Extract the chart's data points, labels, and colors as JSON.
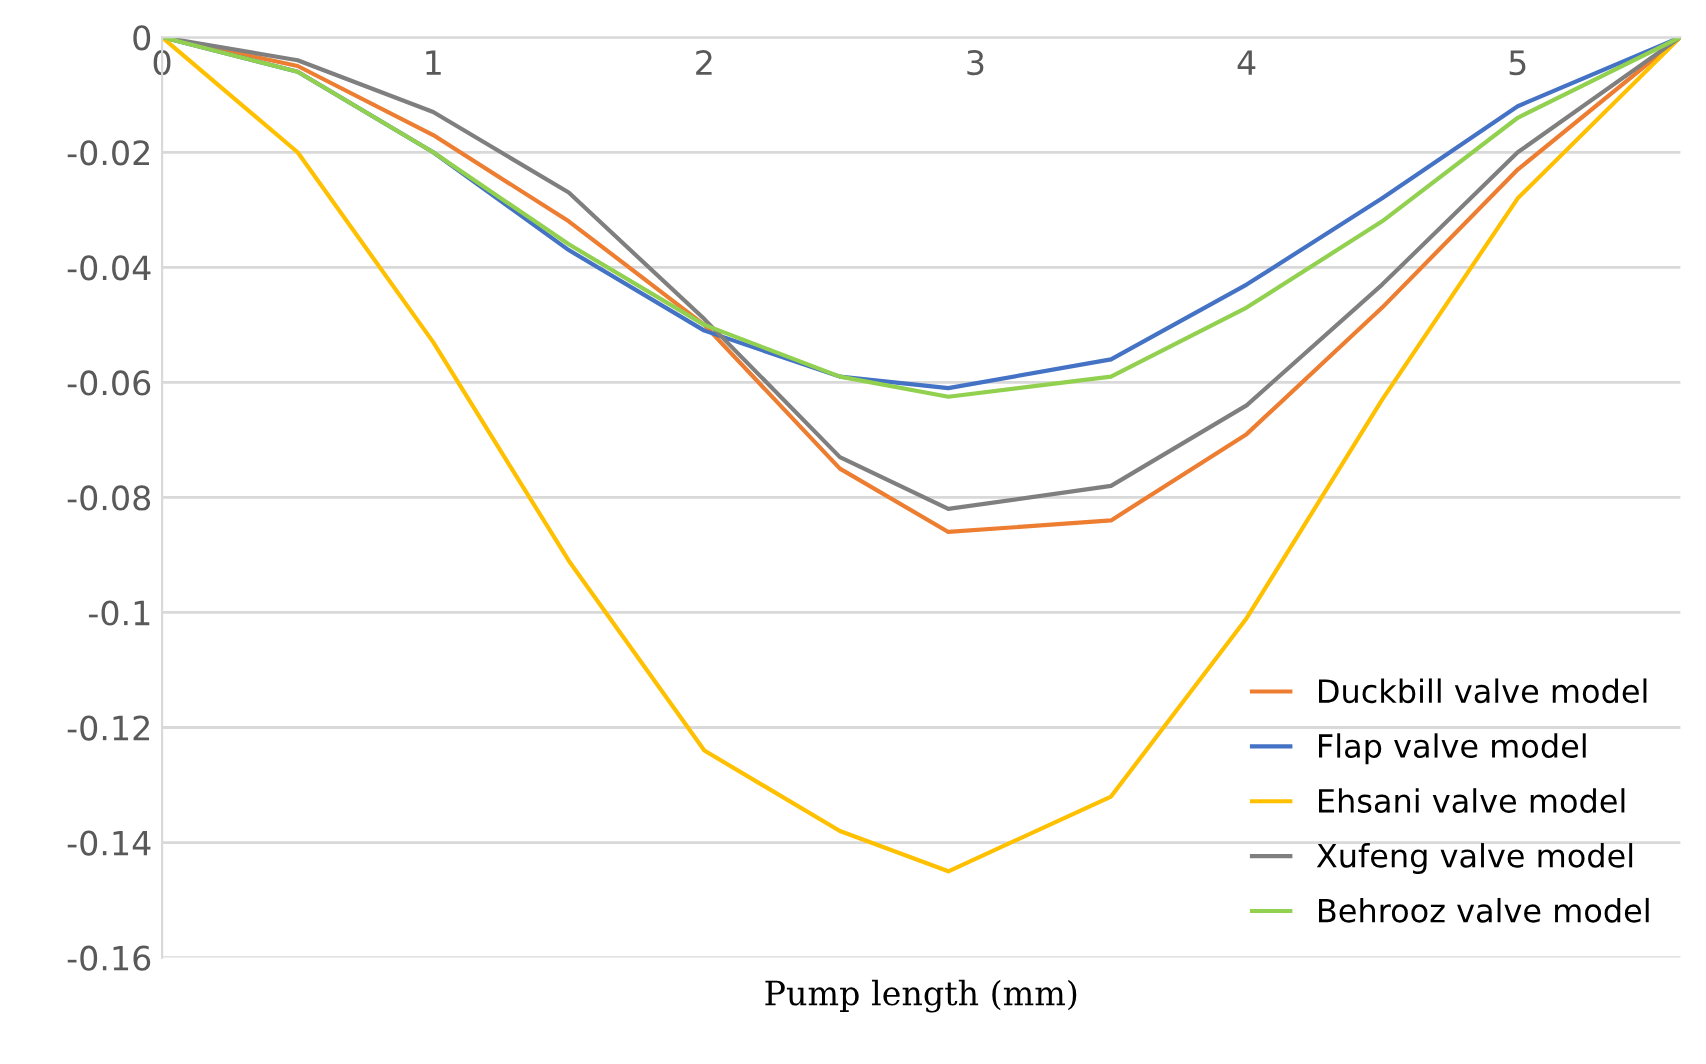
{
  "chart_data": {
    "type": "line",
    "xlabel": "Pump length (mm)",
    "x": [
      0,
      0.5,
      1,
      1.5,
      2,
      2.5,
      2.9,
      3.5,
      4,
      4.5,
      5,
      5.6
    ],
    "series": [
      {
        "name": "Duckbill valve model",
        "color": "#ed7d31",
        "values": [
          0,
          -0.005,
          -0.017,
          -0.032,
          -0.05,
          -0.075,
          -0.086,
          -0.084,
          -0.069,
          -0.047,
          -0.023,
          0
        ]
      },
      {
        "name": "Flap valve model",
        "color": "#4472c4",
        "values": [
          0,
          -0.006,
          -0.02,
          -0.037,
          -0.051,
          -0.059,
          -0.061,
          -0.056,
          -0.043,
          -0.028,
          -0.012,
          0
        ]
      },
      {
        "name": "Ehsani valve model",
        "color": "#ffc000",
        "values": [
          0,
          -0.02,
          -0.053,
          -0.091,
          -0.124,
          -0.138,
          -0.145,
          -0.132,
          -0.101,
          -0.063,
          -0.028,
          0
        ]
      },
      {
        "name": "Xufeng valve model",
        "color": "#7f7f7f",
        "values": [
          0,
          -0.004,
          -0.013,
          -0.027,
          -0.049,
          -0.073,
          -0.082,
          -0.078,
          -0.064,
          -0.043,
          -0.02,
          0
        ]
      },
      {
        "name": "Behrooz valve model",
        "color": "#92d050",
        "values": [
          0,
          -0.006,
          -0.02,
          -0.036,
          -0.05,
          -0.059,
          -0.0625,
          -0.059,
          -0.047,
          -0.032,
          -0.014,
          0
        ]
      }
    ],
    "xlim": [
      0,
      5.6
    ],
    "xticks": [
      0,
      1,
      2,
      3,
      4,
      5
    ],
    "ylim": [
      -0.16,
      0
    ],
    "yticks": [
      0,
      -0.02,
      -0.04,
      -0.06,
      -0.08,
      -0.1,
      -0.12,
      -0.14,
      -0.16
    ],
    "grid": "y",
    "legend": "bottom right",
    "marker": "none",
    "line_style": "solid"
  }
}
